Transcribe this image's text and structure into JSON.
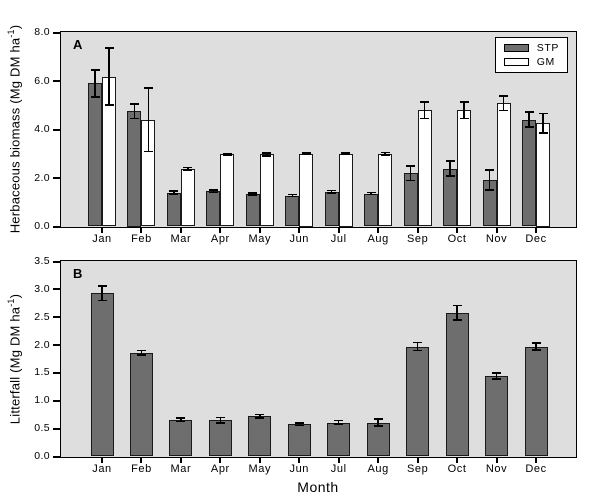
{
  "xlabel": "Month",
  "colors": {
    "figure_background": "#ffffff",
    "plot_background": "#dedede",
    "bar_dark": "#6e6e6e",
    "bar_white": "#ffffff",
    "axis_and_text": "#000000"
  },
  "chart_data": [
    {
      "id": "A",
      "type": "bar",
      "panel_label": "A",
      "ylabel": "Herbaceous biomass (Mg DM ha⁻¹)",
      "ylabel_parts": {
        "pre": "Herbaceous biomass (Mg DM ha",
        "sup": "-1",
        "post": ")"
      },
      "ylim": [
        0,
        8.0
      ],
      "ytick_labels": [
        "0.0",
        "2.0",
        "4.0",
        "6.0",
        "8.0"
      ],
      "grid": false,
      "legend_position": "top-right",
      "error_bars": "symmetric, capped",
      "categories": [
        "Jan",
        "Feb",
        "Mar",
        "Apr",
        "May",
        "Jun",
        "Jul",
        "Aug",
        "Sep",
        "Oct",
        "Nov",
        "Dec"
      ],
      "series": [
        {
          "name": "STP",
          "color": "#6e6e6e",
          "values": [
            5.9,
            4.75,
            1.4,
            1.45,
            1.33,
            1.27,
            1.43,
            1.36,
            2.19,
            2.39,
            1.91,
            4.41
          ],
          "errors": [
            0.55,
            0.3,
            0.05,
            0.05,
            0.04,
            0.04,
            0.04,
            0.04,
            0.3,
            0.3,
            0.4,
            0.3
          ]
        },
        {
          "name": "GM",
          "color": "#ffffff",
          "values": [
            6.18,
            4.4,
            2.38,
            2.97,
            2.97,
            3.0,
            3.0,
            2.99,
            4.79,
            4.79,
            5.08,
            4.25
          ],
          "errors": [
            1.18,
            1.3,
            0.04,
            0.03,
            0.06,
            0.03,
            0.03,
            0.05,
            0.33,
            0.33,
            0.3,
            0.4
          ]
        }
      ]
    },
    {
      "id": "B",
      "type": "bar",
      "panel_label": "B",
      "ylabel": "Litterfall (Mg DM ha⁻¹)",
      "ylabel_parts": {
        "pre": "Litterfall (Mg DM ha",
        "sup": "-1",
        "post": ")"
      },
      "ylim": [
        0,
        3.5
      ],
      "ytick_labels": [
        "0.0",
        "0.5",
        "1.0",
        "1.5",
        "2.0",
        "2.5",
        "3.0",
        "3.5"
      ],
      "grid": false,
      "error_bars": "symmetric, capped",
      "categories": [
        "Jan",
        "Feb",
        "Mar",
        "Apr",
        "May",
        "Jun",
        "Jul",
        "Aug",
        "Sep",
        "Oct",
        "Nov",
        "Dec"
      ],
      "series": [
        {
          "name": "STP",
          "color": "#6e6e6e",
          "values": [
            2.93,
            1.86,
            0.66,
            0.65,
            0.72,
            0.58,
            0.61,
            0.61,
            1.97,
            2.58,
            1.44,
            1.97
          ],
          "errors": [
            0.13,
            0.04,
            0.03,
            0.05,
            0.03,
            0.02,
            0.03,
            0.06,
            0.07,
            0.13,
            0.05,
            0.06
          ]
        }
      ]
    }
  ]
}
